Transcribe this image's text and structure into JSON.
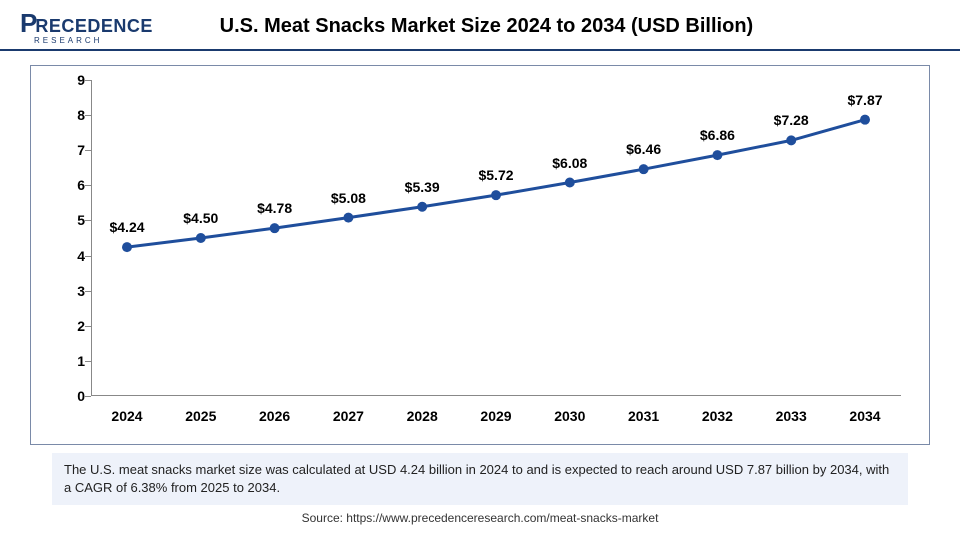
{
  "brand": {
    "name_left": "P",
    "name_rest": "RECEDENCE",
    "sub": "RESEARCH",
    "color": "#1a3a6e"
  },
  "title": "U.S. Meat Snacks Market Size 2024 to 2034 (USD Billion)",
  "chart": {
    "type": "line",
    "categories": [
      "2024",
      "2025",
      "2026",
      "2027",
      "2028",
      "2029",
      "2030",
      "2031",
      "2032",
      "2033",
      "2034"
    ],
    "values": [
      4.24,
      4.5,
      4.78,
      5.08,
      5.39,
      5.72,
      6.08,
      6.46,
      6.86,
      7.28,
      7.87
    ],
    "labels": [
      "$4.24",
      "$4.50",
      "$4.78",
      "$5.08",
      "$5.39",
      "$5.72",
      "$6.08",
      "$6.46",
      "$6.86",
      "$7.28",
      "$7.87"
    ],
    "ylim": [
      0,
      9
    ],
    "ytick_step": 1,
    "line_color": "#1f4e9c",
    "line_width": 3,
    "marker_color": "#1f4e9c",
    "marker_radius": 5,
    "axis_color": "#888888",
    "tick_fontsize": 14,
    "label_fontsize": 14,
    "background_color": "#ffffff",
    "frame_border_color": "#7a8aa8"
  },
  "caption": "The U.S. meat snacks market size was calculated at USD 4.24 billion in 2024 to and is expected to reach around USD 7.87 billion by 2034, with a CAGR of 6.38% from 2025 to 2034.",
  "source": "Source: https://www.precedenceresearch.com/meat-snacks-market"
}
